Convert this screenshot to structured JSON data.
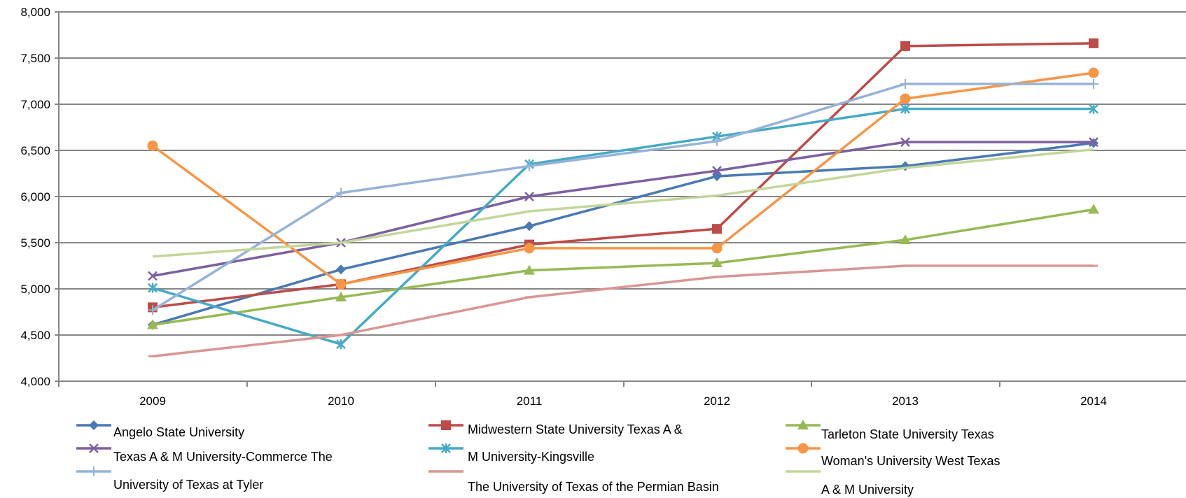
{
  "chart_data": {
    "type": "line",
    "title": "",
    "xlabel": "",
    "ylabel": "",
    "x": [
      "2009",
      "2010",
      "2011",
      "2012",
      "2013",
      "2014"
    ],
    "ylim": [
      4000,
      8000
    ],
    "yticks": [
      "4,000",
      "4,500",
      "5,000",
      "5,500",
      "6,000",
      "6,500",
      "7,000",
      "7,500",
      "8,000"
    ],
    "grid": "horizontal",
    "legend_position": "bottom",
    "series": [
      {
        "name": "Angelo State University",
        "color": "#4a7ab5",
        "marker": "diamond",
        "values": [
          4610,
          5210,
          5680,
          6220,
          6330,
          6580
        ]
      },
      {
        "name": "Midwestern State University Texas A &",
        "color": "#be4b48",
        "marker": "square",
        "values": [
          4800,
          5050,
          5480,
          5650,
          7630,
          7660
        ]
      },
      {
        "name": "Tarleton State University Texas",
        "color": "#98b954",
        "marker": "triangle",
        "values": [
          4610,
          4910,
          5200,
          5280,
          5530,
          5860
        ]
      },
      {
        "name": "Texas A & M University-Commerce The",
        "color": "#7d60a0",
        "marker": "x",
        "values": [
          5140,
          5500,
          6000,
          6280,
          6590,
          6590
        ]
      },
      {
        "name": "M University-Kingsville",
        "color": "#46aac5",
        "marker": "star",
        "values": [
          5010,
          4400,
          6350,
          6650,
          6950,
          6950
        ]
      },
      {
        "name": "Woman's University West Texas",
        "color": "#f79646",
        "marker": "circle",
        "values": [
          6550,
          5050,
          5440,
          5440,
          7060,
          7340
        ]
      },
      {
        "name": "University of Texas at Tyler",
        "color": "#95b3d7",
        "marker": "plus",
        "values": [
          4770,
          6040,
          6330,
          6600,
          7220,
          7220
        ]
      },
      {
        "name": "The University of Texas of the Permian Basin",
        "color": "#d99694",
        "marker": "dash",
        "values": [
          4270,
          4500,
          4910,
          5130,
          5250,
          5250
        ]
      },
      {
        "name": "A & M University",
        "color": "#c3d69b",
        "marker": "none",
        "values": [
          5350,
          5500,
          5840,
          6010,
          6310,
          6510
        ]
      }
    ]
  }
}
